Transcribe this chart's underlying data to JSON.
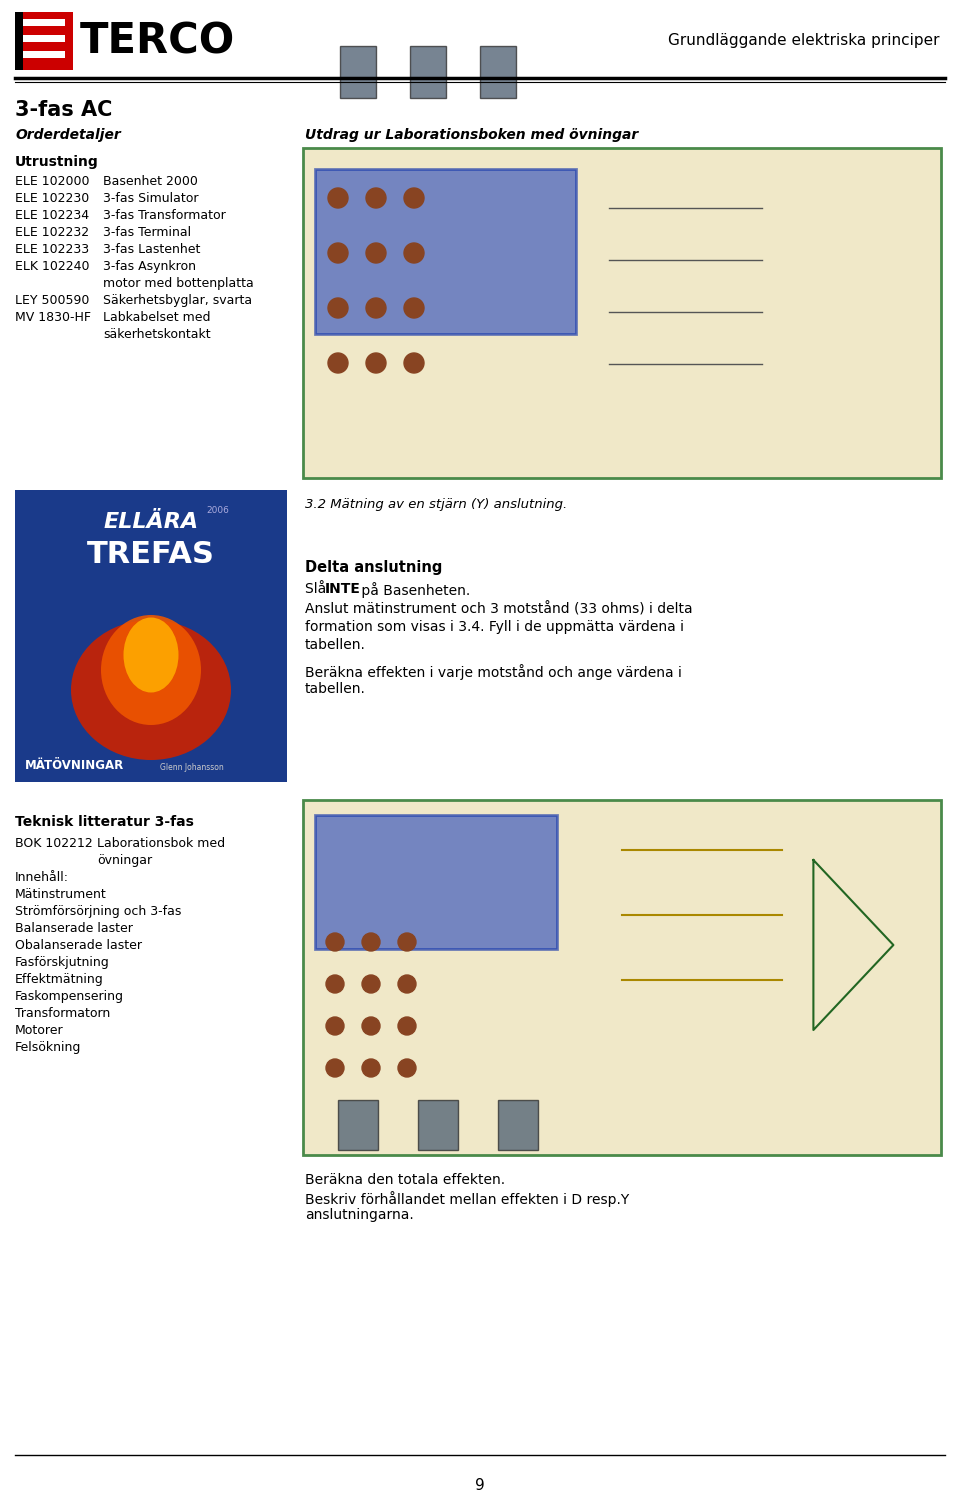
{
  "header_title": "Grundläggande elektriska principer",
  "page_number": "9",
  "section_title": "3-fas AC",
  "col1_heading1": "Orderdetaljer",
  "col2_heading1": "Utdrag ur Laborationsboken med övningar",
  "utrustning_label": "Utrustning",
  "equipment": [
    [
      "ELE 102000",
      "Basenhet 2000"
    ],
    [
      "ELE 102230",
      "3-fas Simulator"
    ],
    [
      "ELE 102234",
      "3-fas Transformator"
    ],
    [
      "ELE 102232",
      "3-fas Terminal"
    ],
    [
      "ELE 102233",
      "3-fas Lastenhet"
    ],
    [
      "ELK 102240",
      "3-fas Asynkron"
    ],
    [
      "",
      "motor med bottenplatta"
    ],
    [
      "LEY 500590",
      "Säkerhetsbyglar, svarta"
    ],
    [
      "MV 1830-HF",
      "Labkabelset med"
    ],
    [
      "",
      "säkerhetskontakt"
    ]
  ],
  "caption1": "3.2 Mätning av en stjärn (Y) anslutning.",
  "delta_heading": "Delta anslutning",
  "delta_text2_lines": [
    "Anslut mätinstrument och 3 motstånd (33 ohms) i delta",
    "formation som visas i 3.4. Fyll i de uppmätta värdena i",
    "tabellen."
  ],
  "delta_text3_lines": [
    "Beräkna effekten i varje motstånd och ange värdena i",
    "tabellen."
  ],
  "tech_heading": "Teknisk litteratur 3-fas",
  "tech_items": [
    [
      "BOK 102212",
      "Laborationsbok med"
    ],
    [
      "",
      "övningar"
    ],
    [
      "Innehåll:",
      ""
    ],
    [
      "Mätinstrument",
      ""
    ],
    [
      "Strömförsörjning och 3-fas",
      ""
    ],
    [
      "Balanserade laster",
      ""
    ],
    [
      "Obalanserade laster",
      ""
    ],
    [
      "Fasförskjutning",
      ""
    ],
    [
      "Effektmätning",
      ""
    ],
    [
      "Faskompensering",
      ""
    ],
    [
      "Transformatorn",
      ""
    ],
    [
      "Motorer",
      ""
    ],
    [
      "Felsökning",
      ""
    ]
  ],
  "bottom_text1": "Beräkna den totala effekten.",
  "bottom_text2_lines": [
    "Beskriv förhållandet mellan effekten i D resp.Y",
    "anslutningarna."
  ],
  "bg_color": "#ffffff",
  "text_color": "#000000",
  "image1_bg": "#f0e8c8",
  "image1_border": "#4a8a4a",
  "image2_bg": "#f0e8c8",
  "image2_border": "#4a8a4a",
  "book_cover_bg": "#1a3a8a",
  "logo_red": "#cc0000"
}
